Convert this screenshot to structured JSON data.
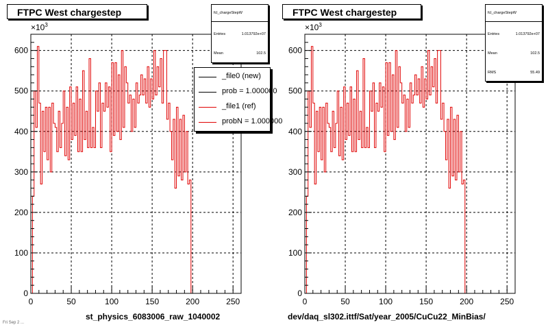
{
  "left": {
    "title": "FTPC West chargestep",
    "stats": {
      "name": "fcl_chargeStepW",
      "rows": [
        {
          "label": "Entries",
          "value": "1.013792e+07"
        },
        {
          "label": "Mean",
          "value": "102.5"
        }
      ]
    },
    "legend": [
      {
        "label": "_file0 (new)",
        "color": "#000000"
      },
      {
        "label": "prob = 1.000000",
        "color": "#000000"
      },
      {
        "label": "_file1 (ref)",
        "color": "#e00000"
      },
      {
        "label": "probN = 1.000000",
        "color": "#e00000"
      }
    ],
    "xlabel": "st_physics_6083006_raw_1040002",
    "y_exponent": "×10",
    "y_exponent_power": "3"
  },
  "right": {
    "title": "FTPC West chargestep",
    "stats": {
      "name": "fcl_chargeStepW",
      "rows": [
        {
          "label": "Entries",
          "value": "1.013792e+07"
        },
        {
          "label": "Mean",
          "value": "102.5"
        },
        {
          "label": "RMS",
          "value": "55.49"
        }
      ]
    },
    "xlabel": "dev/daq_sl302.ittf/Sat/year_2005/CuCu22_MinBias/",
    "y_exponent": "×10",
    "y_exponent_power": "3"
  },
  "footer": "Fri Sep  2 ...",
  "colors": {
    "hist": "#e00000",
    "frame": "#000000"
  },
  "chart_data": [
    {
      "type": "histogram",
      "title": "FTPC West chargestep",
      "xlabel": "st_physics_6083006_raw_1040002",
      "ylabel": "",
      "xlim": [
        0,
        260
      ],
      "ylim": [
        0,
        640
      ],
      "y_unit_multiplier": 1000,
      "x_ticks": [
        0,
        50,
        100,
        150,
        200,
        250
      ],
      "y_ticks": [
        0,
        100,
        200,
        300,
        400,
        500,
        600
      ],
      "grid": true,
      "series": [
        {
          "name": "_file1 (ref)",
          "color": "#e00000",
          "x_start": 0,
          "bin_width": 2,
          "values": [
            0,
            240,
            500,
            410,
            610,
            470,
            270,
            450,
            350,
            460,
            330,
            460,
            300,
            470,
            420,
            410,
            350,
            450,
            360,
            420,
            500,
            340,
            460,
            330,
            510,
            380,
            470,
            390,
            510,
            350,
            480,
            350,
            550,
            380,
            450,
            360,
            580,
            360,
            410,
            360,
            500,
            450,
            520,
            360,
            470,
            450,
            520,
            460,
            510,
            350,
            570,
            390,
            570,
            400,
            540,
            380,
            600,
            410,
            560,
            520,
            470,
            490,
            400,
            480,
            410,
            520,
            470,
            490,
            540,
            490,
            530,
            470,
            560,
            460,
            530,
            480,
            600,
            490,
            560,
            510,
            580,
            470,
            600,
            600,
            430,
            470,
            400,
            330,
            430,
            260,
            460,
            290,
            430,
            280,
            440,
            300,
            400,
            270,
            280,
            0,
            0,
            0,
            0,
            0,
            0,
            0,
            0,
            0,
            0,
            0,
            0,
            0,
            0,
            0,
            0,
            0,
            0,
            0,
            0,
            0,
            0,
            0,
            0,
            0,
            0,
            0,
            0,
            0,
            0,
            0
          ]
        }
      ]
    },
    {
      "type": "histogram",
      "title": "FTPC West chargestep",
      "xlabel": "dev/daq_sl302.ittf/Sat/year_2005/CuCu22_MinBias/",
      "ylabel": "",
      "xlim": [
        0,
        260
      ],
      "ylim": [
        0,
        640
      ],
      "y_unit_multiplier": 1000,
      "x_ticks": [
        0,
        50,
        100,
        150,
        200,
        250
      ],
      "y_ticks": [
        0,
        100,
        200,
        300,
        400,
        500,
        600
      ],
      "grid": true,
      "series": [
        {
          "name": "",
          "color": "#e00000",
          "x_start": 0,
          "bin_width": 2,
          "values": [
            0,
            240,
            500,
            410,
            610,
            470,
            270,
            450,
            350,
            460,
            330,
            460,
            300,
            470,
            420,
            410,
            350,
            450,
            360,
            420,
            500,
            340,
            460,
            330,
            510,
            380,
            470,
            390,
            510,
            350,
            480,
            350,
            550,
            380,
            450,
            360,
            580,
            360,
            410,
            360,
            500,
            450,
            520,
            360,
            470,
            450,
            520,
            460,
            510,
            350,
            570,
            390,
            570,
            400,
            540,
            380,
            600,
            410,
            560,
            520,
            470,
            490,
            400,
            480,
            410,
            520,
            470,
            490,
            540,
            490,
            530,
            470,
            560,
            460,
            530,
            480,
            600,
            490,
            560,
            510,
            580,
            470,
            600,
            600,
            430,
            470,
            400,
            330,
            430,
            260,
            460,
            290,
            430,
            280,
            440,
            300,
            400,
            270,
            280,
            0,
            0,
            0,
            0,
            0,
            0,
            0,
            0,
            0,
            0,
            0,
            0,
            0,
            0,
            0,
            0,
            0,
            0,
            0,
            0,
            0,
            0,
            0,
            0,
            0,
            0,
            0,
            0,
            0,
            0,
            0
          ]
        }
      ]
    }
  ]
}
